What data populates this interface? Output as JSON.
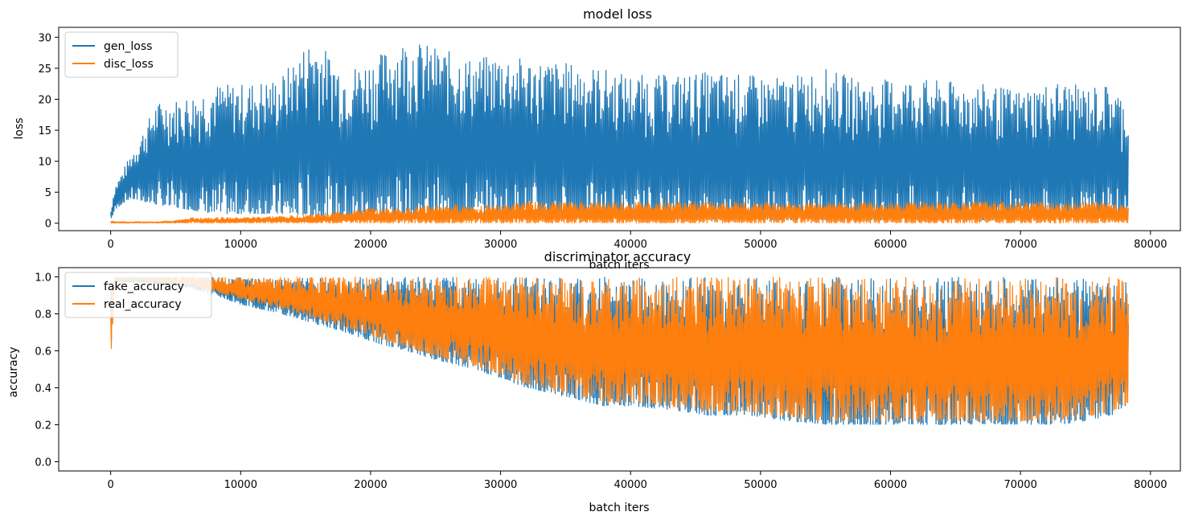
{
  "chart_data": [
    {
      "type": "line",
      "title": "model loss",
      "xlabel": "batch iters",
      "ylabel": "loss",
      "xlim": [
        -4000,
        82300
      ],
      "ylim": [
        -1.2,
        31.6
      ],
      "xticks": [
        0,
        10000,
        20000,
        30000,
        40000,
        50000,
        60000,
        70000,
        80000
      ],
      "yticks": [
        0,
        5,
        10,
        15,
        20,
        25,
        30
      ],
      "legend_position": "upper left",
      "series": [
        {
          "name": "gen_loss",
          "color": "#1f77b4",
          "x": [
            0,
            300,
            800,
            1500,
            2500,
            3500,
            5000,
            6500,
            8000,
            10000,
            13000,
            15500,
            18000,
            20000,
            22700,
            25000,
            28000,
            30000,
            32000,
            35000,
            38000,
            40000,
            43000,
            46000,
            49000,
            52000,
            55000,
            58000,
            61000,
            64000,
            67000,
            70000,
            73000,
            75000,
            77000,
            78300
          ],
          "max": [
            2,
            6,
            8,
            11,
            15,
            19.5,
            20,
            21,
            22.5,
            22.5,
            23.5,
            30.2,
            25,
            26.5,
            29.8,
            28.5,
            26.5,
            27.5,
            26.5,
            26,
            25,
            24,
            24,
            24.5,
            24,
            23.5,
            25,
            23,
            23.5,
            23,
            22.5,
            21.5,
            23,
            22,
            22.5,
            19
          ],
          "min": [
            0.5,
            2,
            3,
            4,
            3.5,
            3,
            2.5,
            2,
            1.5,
            1.5,
            1.5,
            1.2,
            1,
            1,
            0.8,
            0.8,
            0.8,
            0.7,
            0.7,
            0.6,
            0.6,
            0.6,
            0.5,
            0.5,
            0.5,
            0.5,
            0.5,
            0.5,
            0.5,
            0.5,
            0.5,
            0.5,
            0.5,
            0.5,
            0.5,
            0.5
          ]
        },
        {
          "name": "disc_loss",
          "color": "#ff7f0e",
          "x": [
            0,
            300,
            800,
            1500,
            2500,
            3500,
            5000,
            6500,
            8000,
            10000,
            13000,
            15500,
            18000,
            20000,
            22700,
            25000,
            28000,
            30000,
            32000,
            35000,
            38000,
            40000,
            43000,
            46000,
            49000,
            52000,
            55000,
            58000,
            61000,
            64000,
            67000,
            70000,
            73000,
            75000,
            77000,
            78300
          ],
          "max": [
            0.5,
            0.3,
            0.3,
            0.3,
            0.3,
            0.3,
            0.5,
            1,
            1,
            1,
            1.2,
            1.5,
            2,
            2.5,
            2.5,
            3,
            3,
            3,
            3.5,
            3.5,
            3.5,
            3.5,
            3.5,
            3.5,
            3.5,
            3.5,
            3.5,
            3.5,
            3.5,
            3.5,
            3.5,
            3.5,
            3.5,
            3.5,
            3.5,
            3
          ],
          "min": [
            0,
            0,
            0,
            0,
            0,
            0,
            0,
            0,
            0,
            0,
            0,
            0,
            0,
            0,
            0,
            0,
            0,
            0,
            0,
            0,
            0,
            0,
            0,
            0,
            0,
            0,
            0,
            0,
            0,
            0,
            0,
            0,
            0,
            0,
            0,
            0
          ]
        }
      ]
    },
    {
      "type": "line",
      "title": "discriminator accuracy",
      "xlabel": "batch iters",
      "ylabel": "accuracy",
      "xlim": [
        -4000,
        82300
      ],
      "ylim": [
        -0.05,
        1.05
      ],
      "xticks": [
        0,
        10000,
        20000,
        30000,
        40000,
        50000,
        60000,
        70000,
        80000
      ],
      "yticks": [
        0.0,
        0.2,
        0.4,
        0.6,
        0.8,
        1.0
      ],
      "legend_position": "upper left",
      "series": [
        {
          "name": "fake_accuracy",
          "color": "#1f77b4",
          "x": [
            0,
            300,
            800,
            1500,
            2500,
            3500,
            5000,
            6500,
            8000,
            10000,
            13000,
            15500,
            18000,
            20000,
            22700,
            25000,
            28000,
            30000,
            32000,
            35000,
            38000,
            40000,
            43000,
            46000,
            49000,
            52000,
            55000,
            58000,
            61000,
            64000,
            67000,
            70000,
            73000,
            75000,
            77000,
            78300
          ],
          "max": [
            1,
            1,
            1,
            1,
            1,
            1,
            1,
            1,
            1,
            1,
            1,
            1,
            1,
            1,
            1,
            1,
            1,
            1,
            1,
            1,
            1,
            1,
            1,
            1,
            1,
            1,
            1,
            1,
            1,
            1,
            1,
            1,
            1,
            1,
            1,
            1
          ],
          "min": [
            0.45,
            0.97,
            0.97,
            0.97,
            0.97,
            0.96,
            0.95,
            0.93,
            0.9,
            0.85,
            0.8,
            0.75,
            0.7,
            0.65,
            0.6,
            0.55,
            0.5,
            0.45,
            0.4,
            0.35,
            0.3,
            0.3,
            0.28,
            0.25,
            0.25,
            0.22,
            0.2,
            0.2,
            0.2,
            0.2,
            0.2,
            0.2,
            0.2,
            0.22,
            0.25,
            0.3
          ]
        },
        {
          "name": "real_accuracy",
          "color": "#ff7f0e",
          "x": [
            0,
            300,
            800,
            1500,
            2500,
            3500,
            5000,
            6500,
            8000,
            10000,
            13000,
            15500,
            18000,
            20000,
            22700,
            25000,
            28000,
            30000,
            32000,
            35000,
            38000,
            40000,
            43000,
            46000,
            49000,
            52000,
            55000,
            58000,
            61000,
            64000,
            67000,
            70000,
            73000,
            75000,
            77000,
            78300
          ],
          "max": [
            1,
            1,
            1,
            1,
            1,
            1,
            1,
            1,
            1,
            1,
            1,
            1,
            1,
            1,
            1,
            1,
            1,
            1,
            1,
            1,
            1,
            1,
            1,
            1,
            1,
            1,
            1,
            1,
            1,
            1,
            1,
            1,
            1,
            1,
            1,
            1
          ],
          "min": [
            0.45,
            0.98,
            0.98,
            0.98,
            0.98,
            0.97,
            0.96,
            0.95,
            0.92,
            0.88,
            0.83,
            0.78,
            0.73,
            0.68,
            0.62,
            0.57,
            0.52,
            0.47,
            0.42,
            0.37,
            0.32,
            0.32,
            0.3,
            0.27,
            0.27,
            0.24,
            0.22,
            0.22,
            0.22,
            0.22,
            0.22,
            0.22,
            0.22,
            0.24,
            0.27,
            0.32
          ]
        }
      ]
    }
  ]
}
